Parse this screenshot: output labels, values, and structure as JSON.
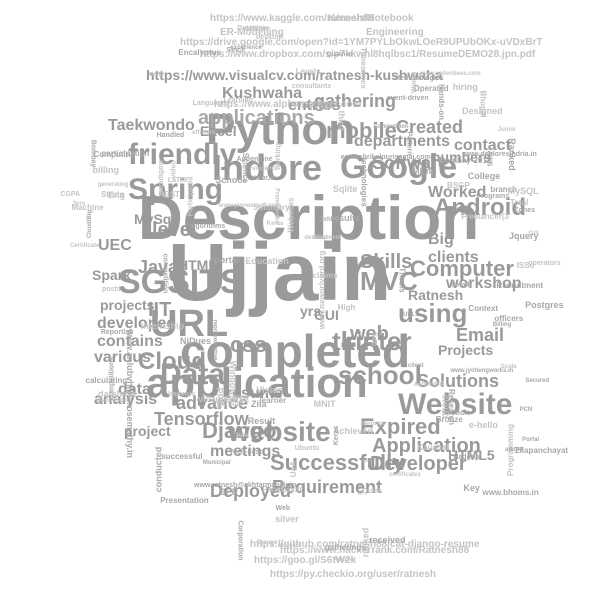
{
  "words": [
    "Ujjain",
    "Description",
    "completed",
    "application",
    "Python",
    "Indore",
    "Google",
    "applications",
    "SGSITS",
    "URL",
    "website",
    "Website",
    "Spring",
    "friendly",
    "Data",
    "Cloud",
    "tkinter",
    "using",
    "school",
    "mobile",
    "MVC",
    "Android",
    "Skills",
    "Computer",
    "Requirement",
    "Django",
    "Successfully",
    "Expired",
    "Developer",
    "Application",
    "Email",
    "Deployed",
    "meetings",
    "advance",
    "Tensorflow",
    "css",
    "web",
    "level",
    "Java",
    "IIT",
    "developed",
    "various",
    "contains",
    "analysis",
    "data",
    "project",
    "Solutions",
    "Projects",
    "Big",
    "clients",
    "workshop",
    "Ratnesh",
    "HTML5",
    "Worked",
    "numbers",
    "contact",
    "departments",
    "Created",
    "gathering",
    "entries",
    "Software",
    "Kushwaha",
    "Taekwondo",
    "MySql",
    "UEC",
    "Spark",
    "projects",
    "HTML",
    "GUI",
    "yrs",
    "resume",
    "Excel",
    "https://www.visualcv.com/ratnesh-kushwaha",
    "https://www.kaggle.com/ratnesh88",
    "https://drive.google.com/open?id=1YM7PYLbOkwLOeR9UPUbOKx-uVDxBrT",
    "https://www.dropbox.com/s/p7kkwhl8hqlbsc1/ResumeDEMO28.jpn.pdf",
    "https://github.com/ratnesh88/cat-django-resume",
    "https://www.hackerrank.com/Ratnesh88",
    "https://goo.gl/S6tW2k",
    "https://py.checkio.org/user/ratnesh",
    "https://www.alphamederer.com",
    "Kernels/Notebook",
    "ER-Modelling",
    "Engineering",
    "www.jyotiengworks.in",
    "received",
    "Reportlab",
    "Oxford",
    "third",
    "students",
    "database",
    "section",
    "calculating",
    "Achieved",
    "College",
    "Recruitment",
    "experience",
    "client",
    "Participated",
    "Municipal",
    "internship",
    "GPP",
    "conducted",
    "officers",
    "belongs",
    "Programming",
    "successful",
    "silver",
    "Struts",
    "learner",
    "Bhopal",
    "Portal",
    "Certificate",
    "Methodologies",
    "village-wise",
    "efficient",
    "MNIT",
    "Ubuntu",
    "Secured",
    "Web",
    "detail",
    "Research",
    "School",
    "e-hello",
    "Zila",
    "B.E",
    "claims",
    "algorithms",
    "Panchayat",
    "AWS",
    "Billing",
    "GIS",
    "Since",
    "gatherings",
    "Appengine",
    "3yrs",
    "desktop",
    "Bombay",
    "Jquery",
    "Heroku",
    "video",
    "CentOS",
    "Handled",
    "PCN",
    "Iris",
    "Visual",
    "Cloud/Big",
    "Pattern",
    "billing",
    "Sec",
    "Levels",
    "Sqlite",
    "Tech-Fest",
    "Junior",
    "posts",
    "development",
    "hiring",
    "Key",
    "Science",
    "Competition",
    "REST",
    "Ranked",
    "Bronze",
    "Machine",
    "Languages",
    "Encalyptus",
    "Datastore",
    "Corporation",
    "operators",
    "Education",
    "Operated",
    "Frameworks",
    "Imperus",
    "Summary",
    "branch",
    "PPTs",
    "Postgres",
    "certificates",
    "Adapter",
    "Programs",
    "consultants",
    "technologies",
    "Freelancer(3",
    "rank-wise",
    "NiDues",
    "Qualified",
    "Kaushal",
    "Bombay-2012",
    "Zilapanchayat",
    "participation",
    "competition",
    "hands-on",
    "www.shrikalpurisamaj.com",
    "www.bhoms.in",
    "Thesis",
    "working",
    "Computing",
    "mentioned",
    "achieved",
    "Scala",
    "cloud",
    "Keras",
    "LaTeX",
    "Context",
    "Windows",
    "Used",
    "competitions",
    "MEng",
    "event-driven",
    "Websites",
    "Vision",
    "MySQL",
    "skills",
    "paradigms",
    "ranked",
    "generating",
    "Presentation",
    "High",
    "results",
    "Hadoop",
    "BSGP",
    "added",
    "portal",
    "CSE",
    "Learning",
    "Quick",
    "Total",
    "Eng",
    "offline",
    "URLs",
    "Result",
    "Designed",
    "Works",
    "CGPA",
    "GATE",
    "New",
    "representative",
    "UoA",
    "ISSc",
    "Zones",
    "Keras",
    "www.codenbees.com",
    "www.anlubvhiblorosemathy.in",
    "www.ratnesh@akhtarmandir.in",
    "www.deploresindria.in",
    "www.neworlvord.org",
    "www.pioneersoft.com",
    "Django",
    "Timeseries"
  ]
}
